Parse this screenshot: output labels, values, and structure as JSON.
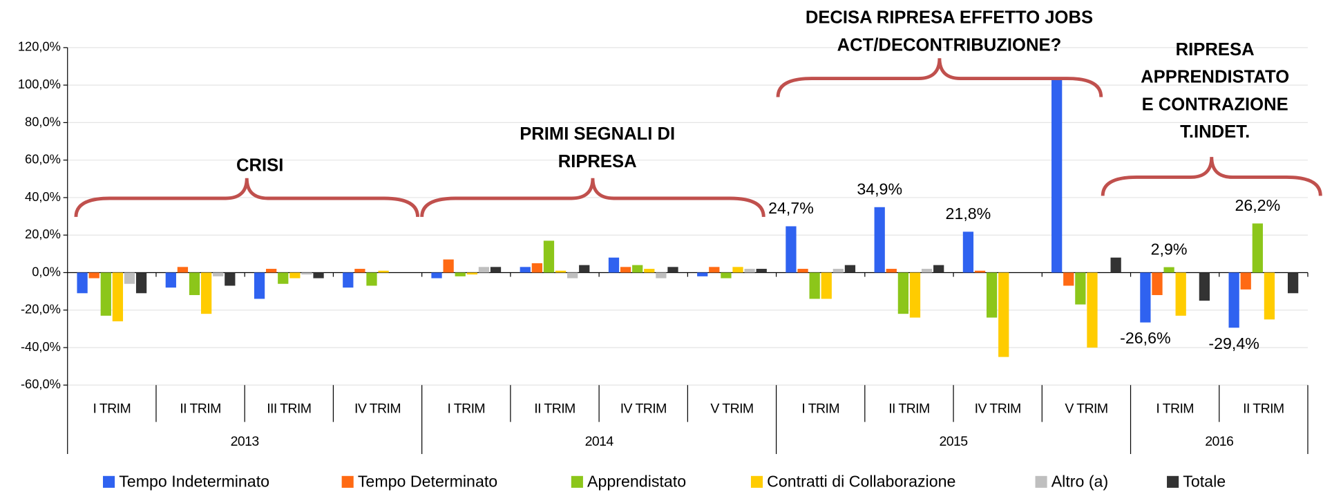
{
  "chart_data": {
    "type": "bar",
    "groups": [
      {
        "label": "2013",
        "categories": [
          "I TRIM",
          "II TRIM",
          "III TRIM",
          "IV TRIM"
        ]
      },
      {
        "label": "2014",
        "categories": [
          "I TRIM",
          "II TRIM",
          "IV TRIM",
          "V TRIM"
        ]
      },
      {
        "label": "2015",
        "categories": [
          "I TRIM",
          "II TRIM",
          "IV TRIM",
          "V TRIM"
        ]
      },
      {
        "label": "2016",
        "categories": [
          "I TRIM",
          "II TRIM"
        ]
      }
    ],
    "series": [
      {
        "name": "Tempo Indeterminato",
        "color": "#2f62f0",
        "values": [
          -11,
          -8,
          -14,
          -8,
          -3,
          3,
          8,
          -2,
          24.7,
          34.9,
          21.8,
          104,
          -26.6,
          -29.4
        ],
        "value_labels": [
          null,
          null,
          null,
          null,
          null,
          null,
          null,
          null,
          "24,7%",
          "34,9%",
          "21,8%",
          null,
          "-26,6%",
          "-29,4%"
        ]
      },
      {
        "name": "Tempo Determinato",
        "color": "#ff6a13",
        "values": [
          -3,
          3,
          2,
          2,
          7,
          5,
          3,
          3,
          2,
          2,
          1,
          -7,
          -12,
          -9
        ]
      },
      {
        "name": "Apprendistato",
        "color": "#8cc61a",
        "values": [
          -23,
          -12,
          -6,
          -7,
          -2,
          17,
          4,
          -3,
          -14,
          -22,
          -24,
          -17,
          2.9,
          26.2
        ],
        "value_labels": [
          null,
          null,
          null,
          null,
          null,
          null,
          null,
          null,
          null,
          null,
          null,
          null,
          "2,9%",
          "26,2%"
        ]
      },
      {
        "name": "Contratti di Collaborazione",
        "color": "#ffcc00",
        "values": [
          -26,
          -22,
          -3,
          1,
          -1,
          1,
          2,
          3,
          -14,
          -24,
          -45,
          -40,
          -23,
          -25
        ]
      },
      {
        "name": "Altro (a)",
        "color": "#bfbfbf",
        "values": [
          -6,
          -2,
          -1,
          0,
          3,
          -3,
          -3,
          2,
          2,
          2,
          0,
          0,
          0,
          0
        ]
      },
      {
        "name": "Totale",
        "color": "#333333",
        "values": [
          -11,
          -7,
          -3,
          0,
          3,
          4,
          3,
          2,
          4,
          4,
          0,
          8,
          -15,
          -11
        ]
      }
    ],
    "ylim": [
      -60,
      120
    ],
    "yticks": [
      {
        "value": -60,
        "label": "-60,0%"
      },
      {
        "value": -40,
        "label": "-40,0%"
      },
      {
        "value": -20,
        "label": "-20,0%"
      },
      {
        "value": 0,
        "label": "0,0%"
      },
      {
        "value": 20,
        "label": "20,0%"
      },
      {
        "value": 40,
        "label": "40,0%"
      },
      {
        "value": 60,
        "label": "60,0%"
      },
      {
        "value": 80,
        "label": "80,0%"
      },
      {
        "value": 100,
        "label": "100,0%"
      },
      {
        "value": 120,
        "label": "120,0%"
      }
    ],
    "grid": true,
    "annotations": [
      {
        "lines": [
          "CRISI"
        ]
      },
      {
        "lines": [
          "PRIMI SEGNALI DI",
          "RIPRESA"
        ]
      },
      {
        "lines": [
          "DECISA RIPRESA EFFETTO JOBS",
          "ACT/DECONTRIBUZIONE?"
        ]
      },
      {
        "lines": [
          "RIPRESA",
          "APPRENDISTATO",
          "E CONTRAZIONE",
          "T.INDET."
        ]
      }
    ]
  }
}
